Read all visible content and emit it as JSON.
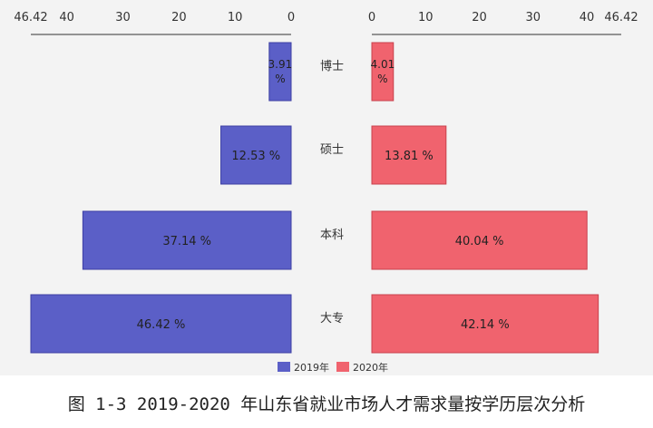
{
  "caption": "图 1-3 2019-2020 年山东省就业市场人才需求量按学历层次分析",
  "colors": {
    "left": "#5b5fc7",
    "right": "#f0636e",
    "background": "#f3f3f3"
  },
  "chart_data": {
    "type": "bar",
    "orientation": "horizontal-butterfly",
    "categories": [
      "博士",
      "硕士",
      "本科",
      "大专"
    ],
    "series": [
      {
        "name": "2019年",
        "side": "left",
        "values": [
          3.91,
          12.53,
          37.14,
          46.42
        ],
        "labels": [
          "3.91 %",
          "12.53 %",
          "37.14 %",
          "46.42 %"
        ]
      },
      {
        "name": "2020年",
        "side": "right",
        "values": [
          4.01,
          13.81,
          40.04,
          42.14
        ],
        "labels": [
          "4.01 %",
          "13.81 %",
          "40.04 %",
          "42.14 %"
        ]
      }
    ],
    "axis_max": 46.42,
    "left_ticks": [
      "46.42",
      "40",
      "30",
      "20",
      "10",
      "0"
    ],
    "left_tick_values": [
      46.42,
      40,
      30,
      20,
      10,
      0
    ],
    "right_ticks": [
      "0",
      "10",
      "20",
      "30",
      "40",
      "46.42"
    ],
    "right_tick_values": [
      0,
      10,
      20,
      30,
      40,
      46.42
    ],
    "legend_position": "bottom-center",
    "grid": false
  }
}
